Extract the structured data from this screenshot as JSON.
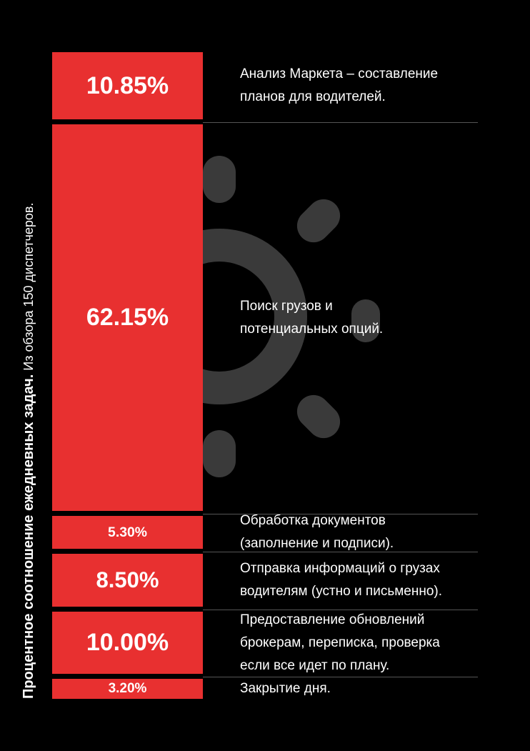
{
  "colors": {
    "background": "#000000",
    "bar": "#e83030",
    "text": "#ffffff",
    "icon": "#3a3a3a"
  },
  "side_title": {
    "bold": "Процентное соотношение ежедневных задач.",
    "light": " Из обзора 150 диспетчеров."
  },
  "background_icon": "sun-icon",
  "chart_data": {
    "type": "bar",
    "orientation": "stacked-vertical",
    "title": "Процентное соотношение ежедневных задач.",
    "subtitle": "Из обзора 150 диспетчеров.",
    "unit": "%",
    "categories": [
      "Анализ Маркета – составление\nпланов для водителей.",
      "Поиск грузов и\nпотенциальных опций.",
      "Обработка документов\n(заполнение и подписи).",
      "Отправка информаций о грузах\nводителям (устно и письменно).",
      "Предоставление обновлений\nброкерам, переписка, проверка\nесли все идет по плану.",
      "Закрытие дня."
    ],
    "values": [
      10.85,
      62.15,
      5.3,
      8.5,
      10.0,
      3.2
    ],
    "value_labels": [
      "10.85%",
      "62.15%",
      "5.30%",
      "8.50%",
      "10.00%",
      "3.20%"
    ]
  }
}
